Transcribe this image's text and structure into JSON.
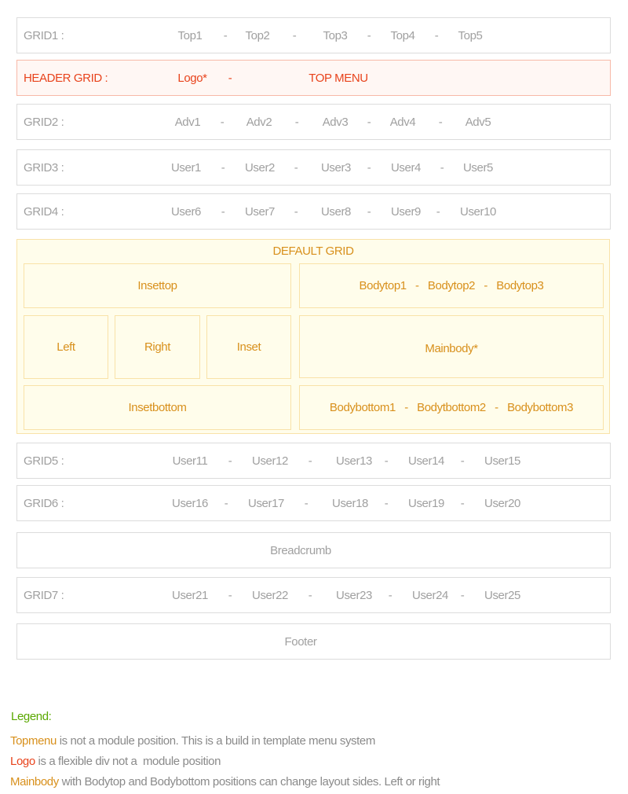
{
  "separator": "-",
  "colors": {
    "grid_text": "#a0a0a0",
    "header": "#e8431c",
    "default_grid": "#d8901c",
    "legend_title": "#5aa800"
  },
  "grid1": {
    "label": "GRID1 :",
    "items": [
      "Top1",
      "Top2",
      "Top3",
      "Top4",
      "Top5"
    ]
  },
  "header": {
    "label": "HEADER GRID :",
    "items": [
      "Logo*",
      "TOP MENU"
    ]
  },
  "grid2": {
    "label": "GRID2 :",
    "items": [
      "Adv1",
      "Adv2",
      "Adv3",
      "Adv4",
      "Adv5"
    ]
  },
  "grid3": {
    "label": "GRID3 :",
    "items": [
      "User1",
      "User2",
      "User3",
      "User4",
      "User5"
    ]
  },
  "grid4": {
    "label": "GRID4 :",
    "items": [
      "User6",
      "User7",
      "User8",
      "User9",
      "User10"
    ]
  },
  "default_grid": {
    "title": "DEFAULT GRID",
    "insettop": "Insettop",
    "bodytop": "Bodytop1   -   Bodytop2   -   Bodytop3",
    "left": "Left",
    "right": "Right",
    "inset": "Inset",
    "mainbody": "Mainbody*",
    "insetbottom": "Insetbottom",
    "bodybottom": "Bodybottom1   -   Bodytbottom2   -   Bodybottom3"
  },
  "grid5": {
    "label": "GRID5 :",
    "items": [
      "User11",
      "User12",
      "User13",
      "User14",
      "User15"
    ]
  },
  "grid6": {
    "label": "GRID6 :",
    "items": [
      "User16",
      "User17",
      "User18",
      "User19",
      "User20"
    ]
  },
  "breadcrumb": "Breadcrumb",
  "grid7": {
    "label": "GRID7 :",
    "items": [
      "User21",
      "User22",
      "User23",
      "User24",
      "User25"
    ]
  },
  "footer": "Footer",
  "legend": {
    "title": "Legend:",
    "lines": [
      {
        "key": "Topmenu",
        "text": " is not a module position. This is a build in template menu system"
      },
      {
        "key": "Logo",
        "text": " is a flexible div not a  module position"
      },
      {
        "key": "Mainbody",
        "text": " with Bodytop and Bodybottom positions can change layout sides. Left or right"
      }
    ]
  }
}
